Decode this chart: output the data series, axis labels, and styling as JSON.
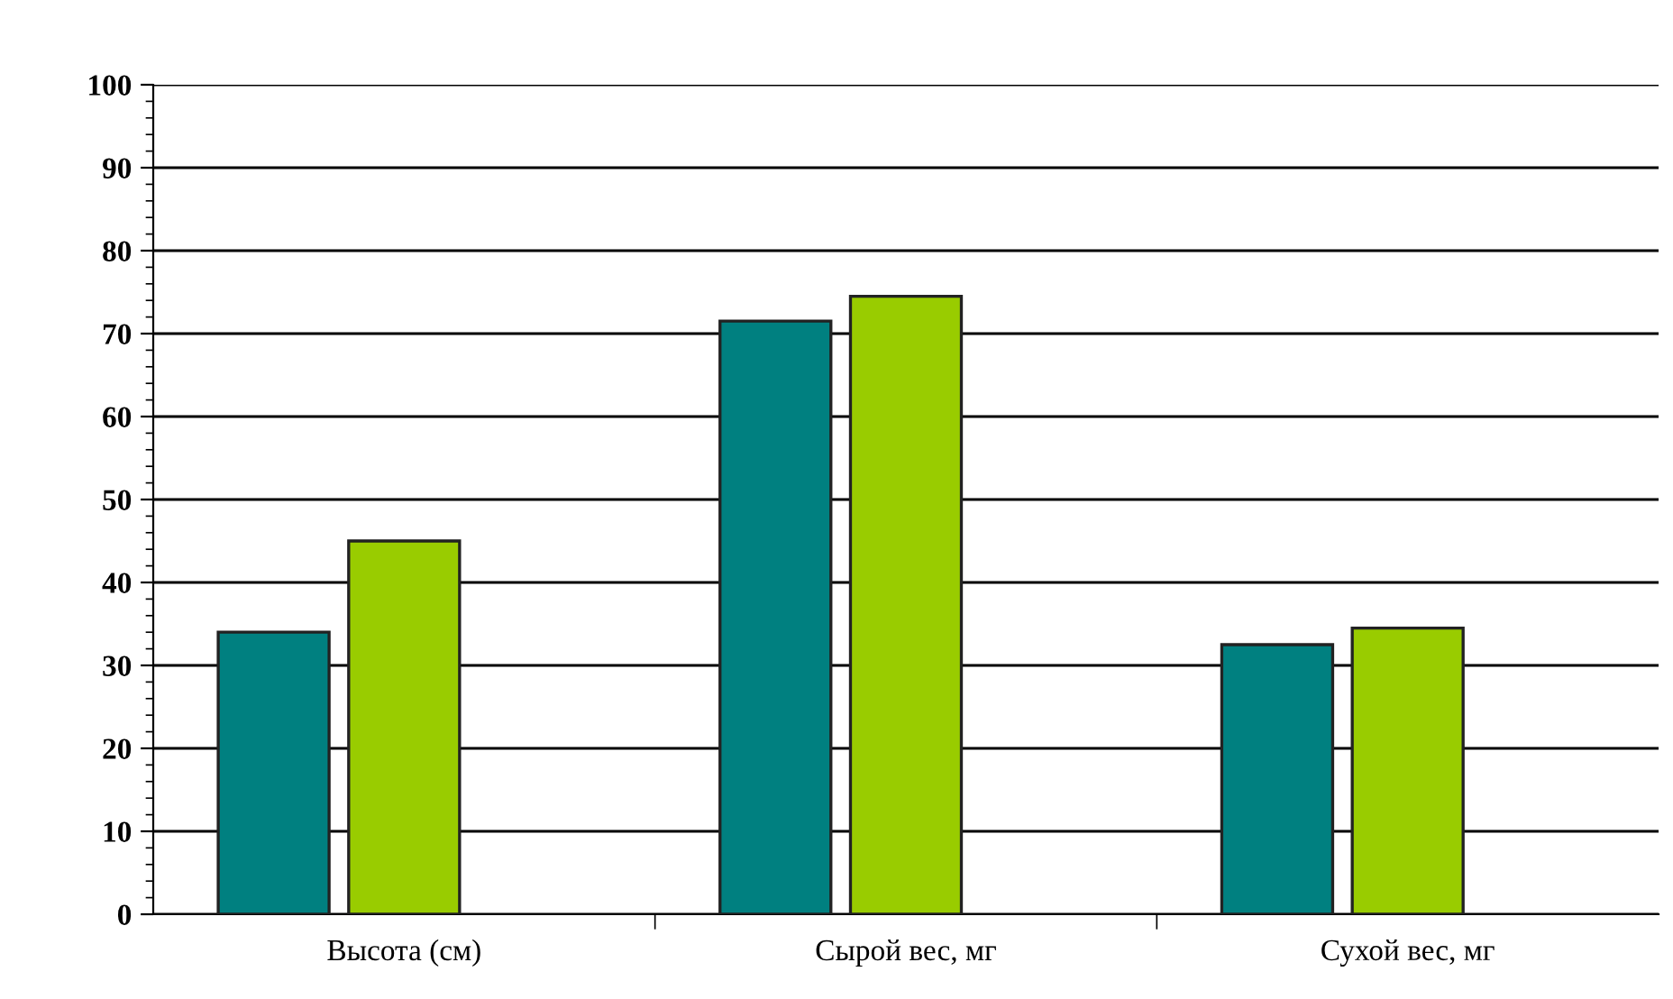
{
  "chart_data": {
    "type": "bar",
    "categories": [
      "Высота (см)",
      "Сырой вес, мг",
      "Сухой вес, мг"
    ],
    "series": [
      {
        "color": "#008080",
        "values": [
          34,
          71.5,
          32.5
        ]
      },
      {
        "color": "#99cc00",
        "values": [
          45,
          74.5,
          34.5
        ]
      },
      {
        "values": [
          null,
          null,
          null
        ]
      }
    ],
    "ylim": [
      0,
      100
    ],
    "yticks": [
      0,
      10,
      20,
      30,
      40,
      50,
      60,
      70,
      80,
      90,
      100
    ],
    "grid": "y",
    "legend": false
  }
}
